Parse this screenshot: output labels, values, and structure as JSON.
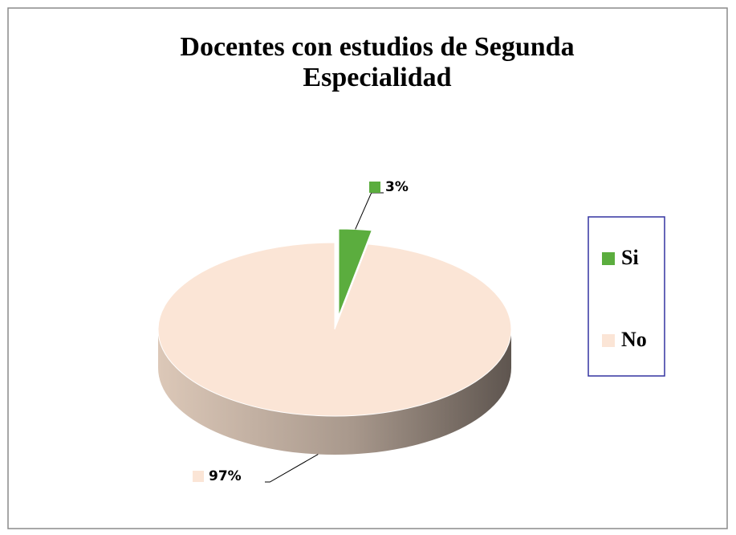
{
  "chart_data": {
    "type": "pie",
    "title": "Docentes con estudios de Segunda Especialidad",
    "categories": [
      "Si",
      "No"
    ],
    "values": [
      3,
      97
    ],
    "value_labels": [
      "3%",
      "97%"
    ],
    "colors": [
      "#5bad3e",
      "#fbe5d6"
    ],
    "legend": "right"
  }
}
